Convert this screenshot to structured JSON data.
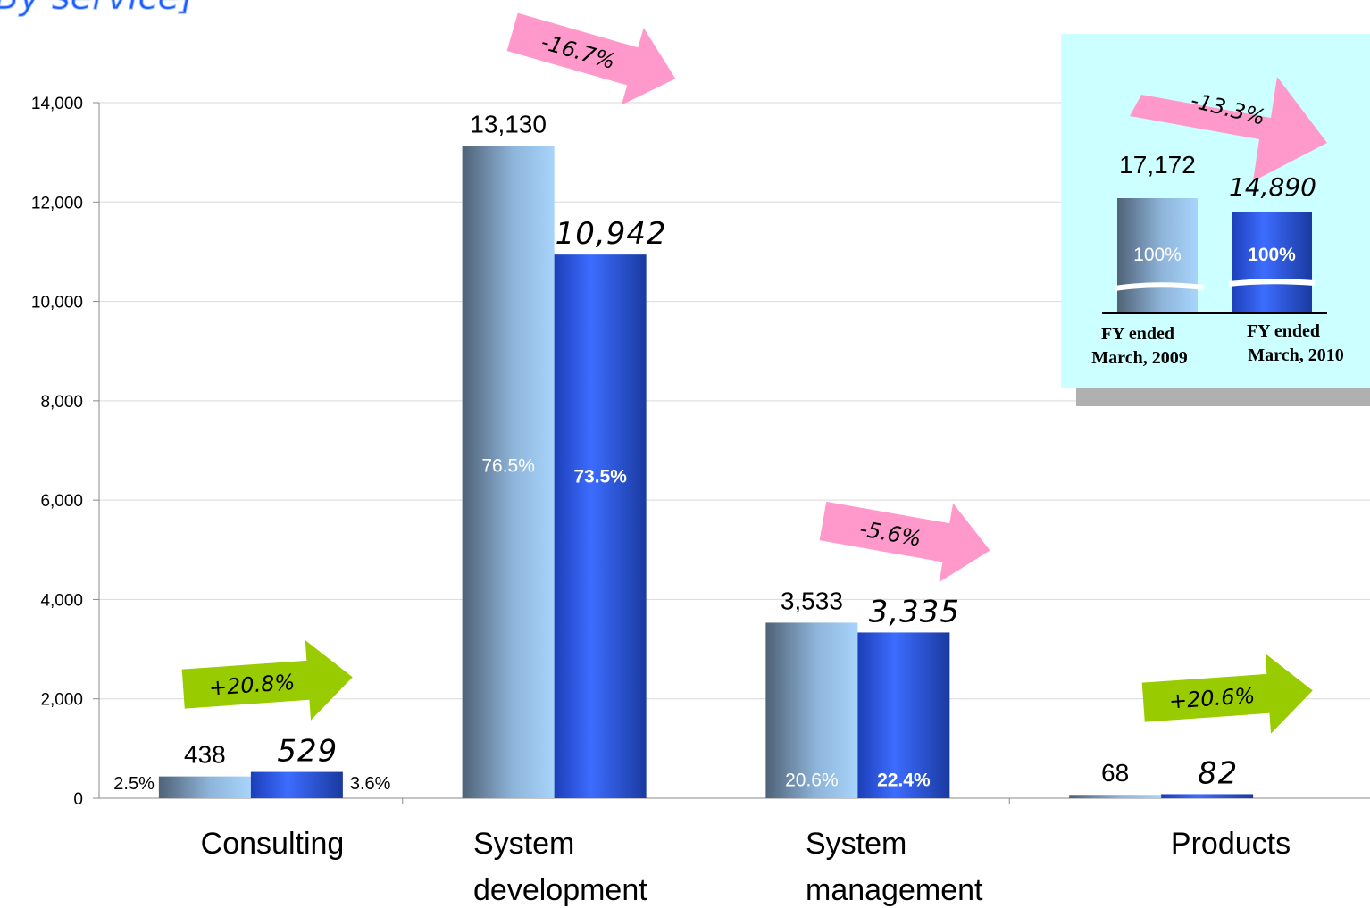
{
  "title_fragment": "By service]",
  "colors": {
    "bar_2009_light": "#9ccdf8",
    "bar_2009_dark": "#4f6277",
    "bar_2010_light": "#3f6dff",
    "bar_2010_dark": "#1a3aa8",
    "decrease_arrow": "#ff99cc",
    "increase_arrow": "#99cc00",
    "inset_bg": "#ccffff",
    "grid": "#d9d9d9"
  },
  "chart_data": {
    "type": "bar",
    "categories": [
      "Consulting",
      "System\ndevelopment",
      "System\nmanagement",
      "Products"
    ],
    "series": [
      {
        "values": [
          438,
          13130,
          3533,
          68
        ],
        "labels": [
          "438",
          "13,130",
          "3,533",
          "68"
        ],
        "shares": [
          "2.5%",
          "76.5%",
          "20.6%",
          ""
        ]
      },
      {
        "values": [
          529,
          10942,
          3335,
          82
        ],
        "labels": [
          "529",
          "10,942",
          "3,335",
          "82"
        ],
        "shares": [
          "3.6%",
          "73.5%",
          "22.4%",
          ""
        ]
      }
    ],
    "changes": [
      "+20.8%",
      "-16.7%",
      "-5.6%",
      "+20.6%"
    ],
    "yticks": [
      "0",
      "2,000",
      "4,000",
      "6,000",
      "8,000",
      "10,000",
      "12,000",
      "14,000"
    ],
    "ylim": [
      0,
      14000
    ],
    "grid": true,
    "inset": {
      "total_2009": "17,172",
      "total_2010": "14,890",
      "share_2009": "100%",
      "share_2010": "100%",
      "change": "-13.3%",
      "label_2009": [
        "FY ended",
        "March, 2009"
      ],
      "label_2010": [
        "FY ended",
        "March, 2010"
      ]
    }
  }
}
